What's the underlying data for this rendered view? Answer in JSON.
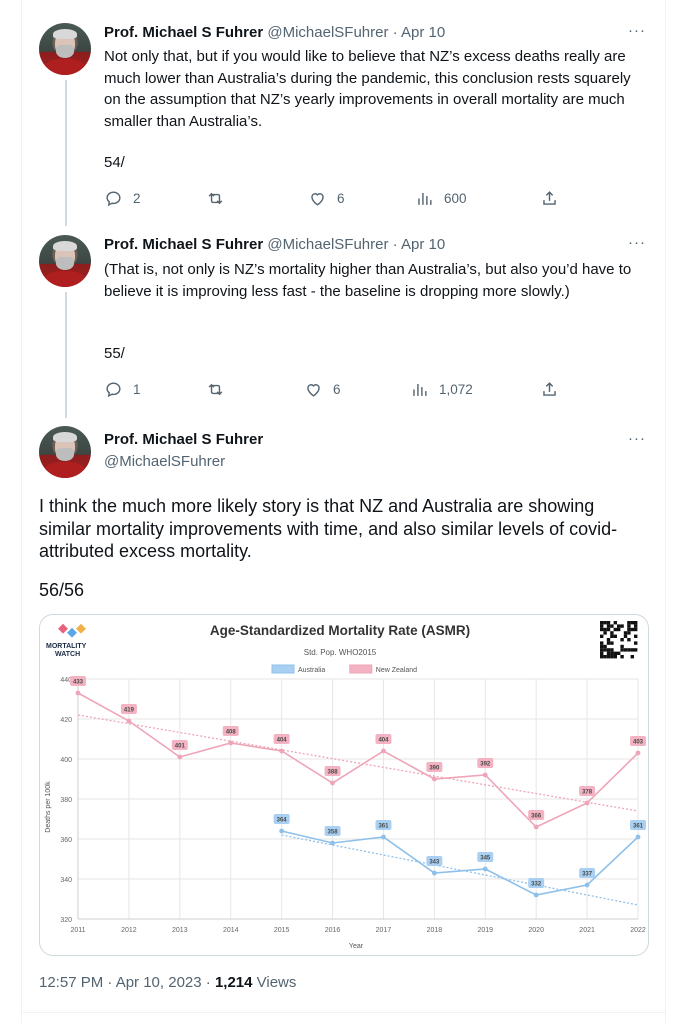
{
  "author": {
    "name": "Prof. Michael S Fuhrer",
    "handle": "@MichaelSFuhrer"
  },
  "more_label": "···",
  "tweets": [
    {
      "meta": "@MichaelSFuhrer · Apr 10",
      "text": "Not only that, but if you would like to believe that NZ’s excess deaths really are much lower than Australia’s during the pandemic, this conclusion rests squarely on the assumption that NZ’s yearly improvements in overall mortality are much smaller than Australia’s.",
      "number": "54/",
      "replies": "2",
      "likes": "6",
      "views": "600"
    },
    {
      "meta": "@MichaelSFuhrer · Apr 10",
      "text": "(That is, not only is NZ’s mortality higher than Australia’s, but also you’d have to believe it is improving less fast - the baseline is dropping more slowly.)",
      "number": "55/",
      "replies": "1",
      "likes": "6",
      "views": "1,072"
    }
  ],
  "main_tweet": {
    "text": "I think the much more likely story is that NZ and Australia are showing similar mortality improvements with time, and also similar levels of covid-attributed excess mortality.",
    "number": "56/56",
    "timestamp": "12:57 PM · Apr 10, 2023 · ",
    "views_count": "1,214",
    "views_label": " Views"
  },
  "chart_data": {
    "type": "line",
    "title": "Age-Standardized Mortality Rate (ASMR)",
    "subtitle": "Std. Pop. WHO2015",
    "logo_text": [
      "MORTALITY",
      "WATCH"
    ],
    "xlabel": "Year",
    "ylabel": "Deaths per 100k",
    "x": [
      2011,
      2012,
      2013,
      2014,
      2015,
      2016,
      2017,
      2018,
      2019,
      2020,
      2021,
      2022
    ],
    "ylim": [
      320,
      440
    ],
    "yticks": [
      320,
      340,
      360,
      380,
      400,
      420,
      440
    ],
    "legend_position": "top-center",
    "grid": true,
    "series": [
      {
        "name": "Australia",
        "color": "#8fc0ea",
        "label_bg": "#a9d0f2",
        "x": [
          2015,
          2016,
          2017,
          2018,
          2019,
          2020,
          2021,
          2022
        ],
        "values": [
          364,
          358,
          361,
          343,
          345,
          332,
          337,
          361
        ],
        "trend": {
          "x": [
            2015,
            2022
          ],
          "y": [
            362,
            327
          ]
        }
      },
      {
        "name": "New Zealand",
        "color": "#eea5b8",
        "label_bg": "#f3b3c2",
        "x": [
          2011,
          2012,
          2013,
          2014,
          2015,
          2016,
          2017,
          2018,
          2019,
          2020,
          2021,
          2022
        ],
        "values": [
          433,
          419,
          401,
          408,
          404,
          388,
          404,
          390,
          392,
          366,
          378,
          403
        ],
        "trend": {
          "x": [
            2011,
            2022
          ],
          "y": [
            422,
            374
          ]
        }
      }
    ]
  }
}
